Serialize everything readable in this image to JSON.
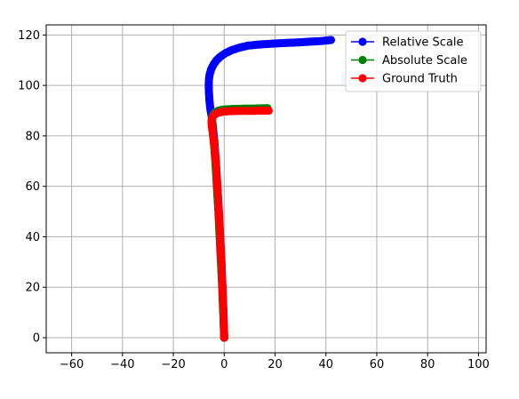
{
  "colors": {
    "relative": "#0000ff",
    "absolute": "#008000",
    "ground": "#ff0000",
    "grid": "#b0b0b0",
    "axes": "#000000"
  },
  "chart_data": {
    "type": "line",
    "title": "",
    "xlabel": "",
    "ylabel": "",
    "xlim": [
      -70,
      103
    ],
    "ylim": [
      -6,
      124
    ],
    "xticks": [
      -60,
      -40,
      -20,
      0,
      20,
      40,
      60,
      80,
      100
    ],
    "xtick_labels": [
      "−60",
      "−40",
      "−20",
      "0",
      "20",
      "40",
      "60",
      "80",
      "100"
    ],
    "yticks": [
      0,
      20,
      40,
      60,
      80,
      100,
      120
    ],
    "ytick_labels": [
      "0",
      "20",
      "40",
      "60",
      "80",
      "100",
      "120"
    ],
    "grid": true,
    "legend": {
      "placement": "top-right",
      "entries": [
        "Relative Scale",
        "Absolute Scale",
        "Ground Truth"
      ]
    },
    "series": [
      {
        "name": "Relative Scale",
        "color_key": "relative",
        "marker": "circle",
        "x": [
          0,
          -0.3,
          -0.7,
          -1.1,
          -1.6,
          -2.1,
          -2.7,
          -3.3,
          -3.9,
          -4.5,
          -5.0,
          -5.5,
          -5.8,
          -6.0,
          -6.1,
          -6.0,
          -5.7,
          -5.1,
          -4.2,
          -3.0,
          -1.4,
          0.5,
          3.0,
          6.0,
          9.5,
          13.5,
          18,
          23,
          28,
          33,
          38,
          42
        ],
        "y": [
          0,
          10,
          20,
          30,
          40,
          50,
          60,
          70,
          78,
          84,
          88,
          91,
          94,
          97,
          100,
          102.5,
          104.5,
          106.5,
          108.3,
          110,
          111.5,
          112.8,
          114,
          115,
          115.8,
          116.2,
          116.5,
          116.8,
          117,
          117.3,
          117.6,
          118
        ]
      },
      {
        "name": "Absolute Scale",
        "color_key": "absolute",
        "marker": "circle",
        "x": [
          0,
          -0.4,
          -0.8,
          -1.3,
          -1.8,
          -2.3,
          -2.9,
          -3.5,
          -4.1,
          -4.6,
          -4.9,
          -4.6,
          -3.7,
          -2.3,
          -0.5,
          2,
          5,
          8,
          11,
          14,
          17
        ],
        "y": [
          0,
          10,
          20,
          30,
          40,
          50,
          60,
          70,
          78,
          83,
          86,
          88,
          89.2,
          90,
          90.4,
          90.6,
          90.7,
          90.8,
          90.8,
          90.9,
          91
        ]
      },
      {
        "name": "Ground Truth",
        "color_key": "ground",
        "marker": "circle",
        "x": [
          0,
          -0.3,
          -0.7,
          -1.1,
          -1.6,
          -2.1,
          -2.7,
          -3.3,
          -3.9,
          -4.5,
          -4.9,
          -5.0,
          -4.6,
          -3.7,
          -2.3,
          -0.5,
          2,
          5,
          8,
          11,
          14,
          16.5,
          17.5
        ],
        "y": [
          0,
          10,
          20,
          30,
          40,
          50,
          60,
          70,
          76,
          81,
          84,
          86,
          87.5,
          88.5,
          89.2,
          89.6,
          89.8,
          89.9,
          89.9,
          89.9,
          90,
          90,
          90
        ]
      }
    ]
  }
}
